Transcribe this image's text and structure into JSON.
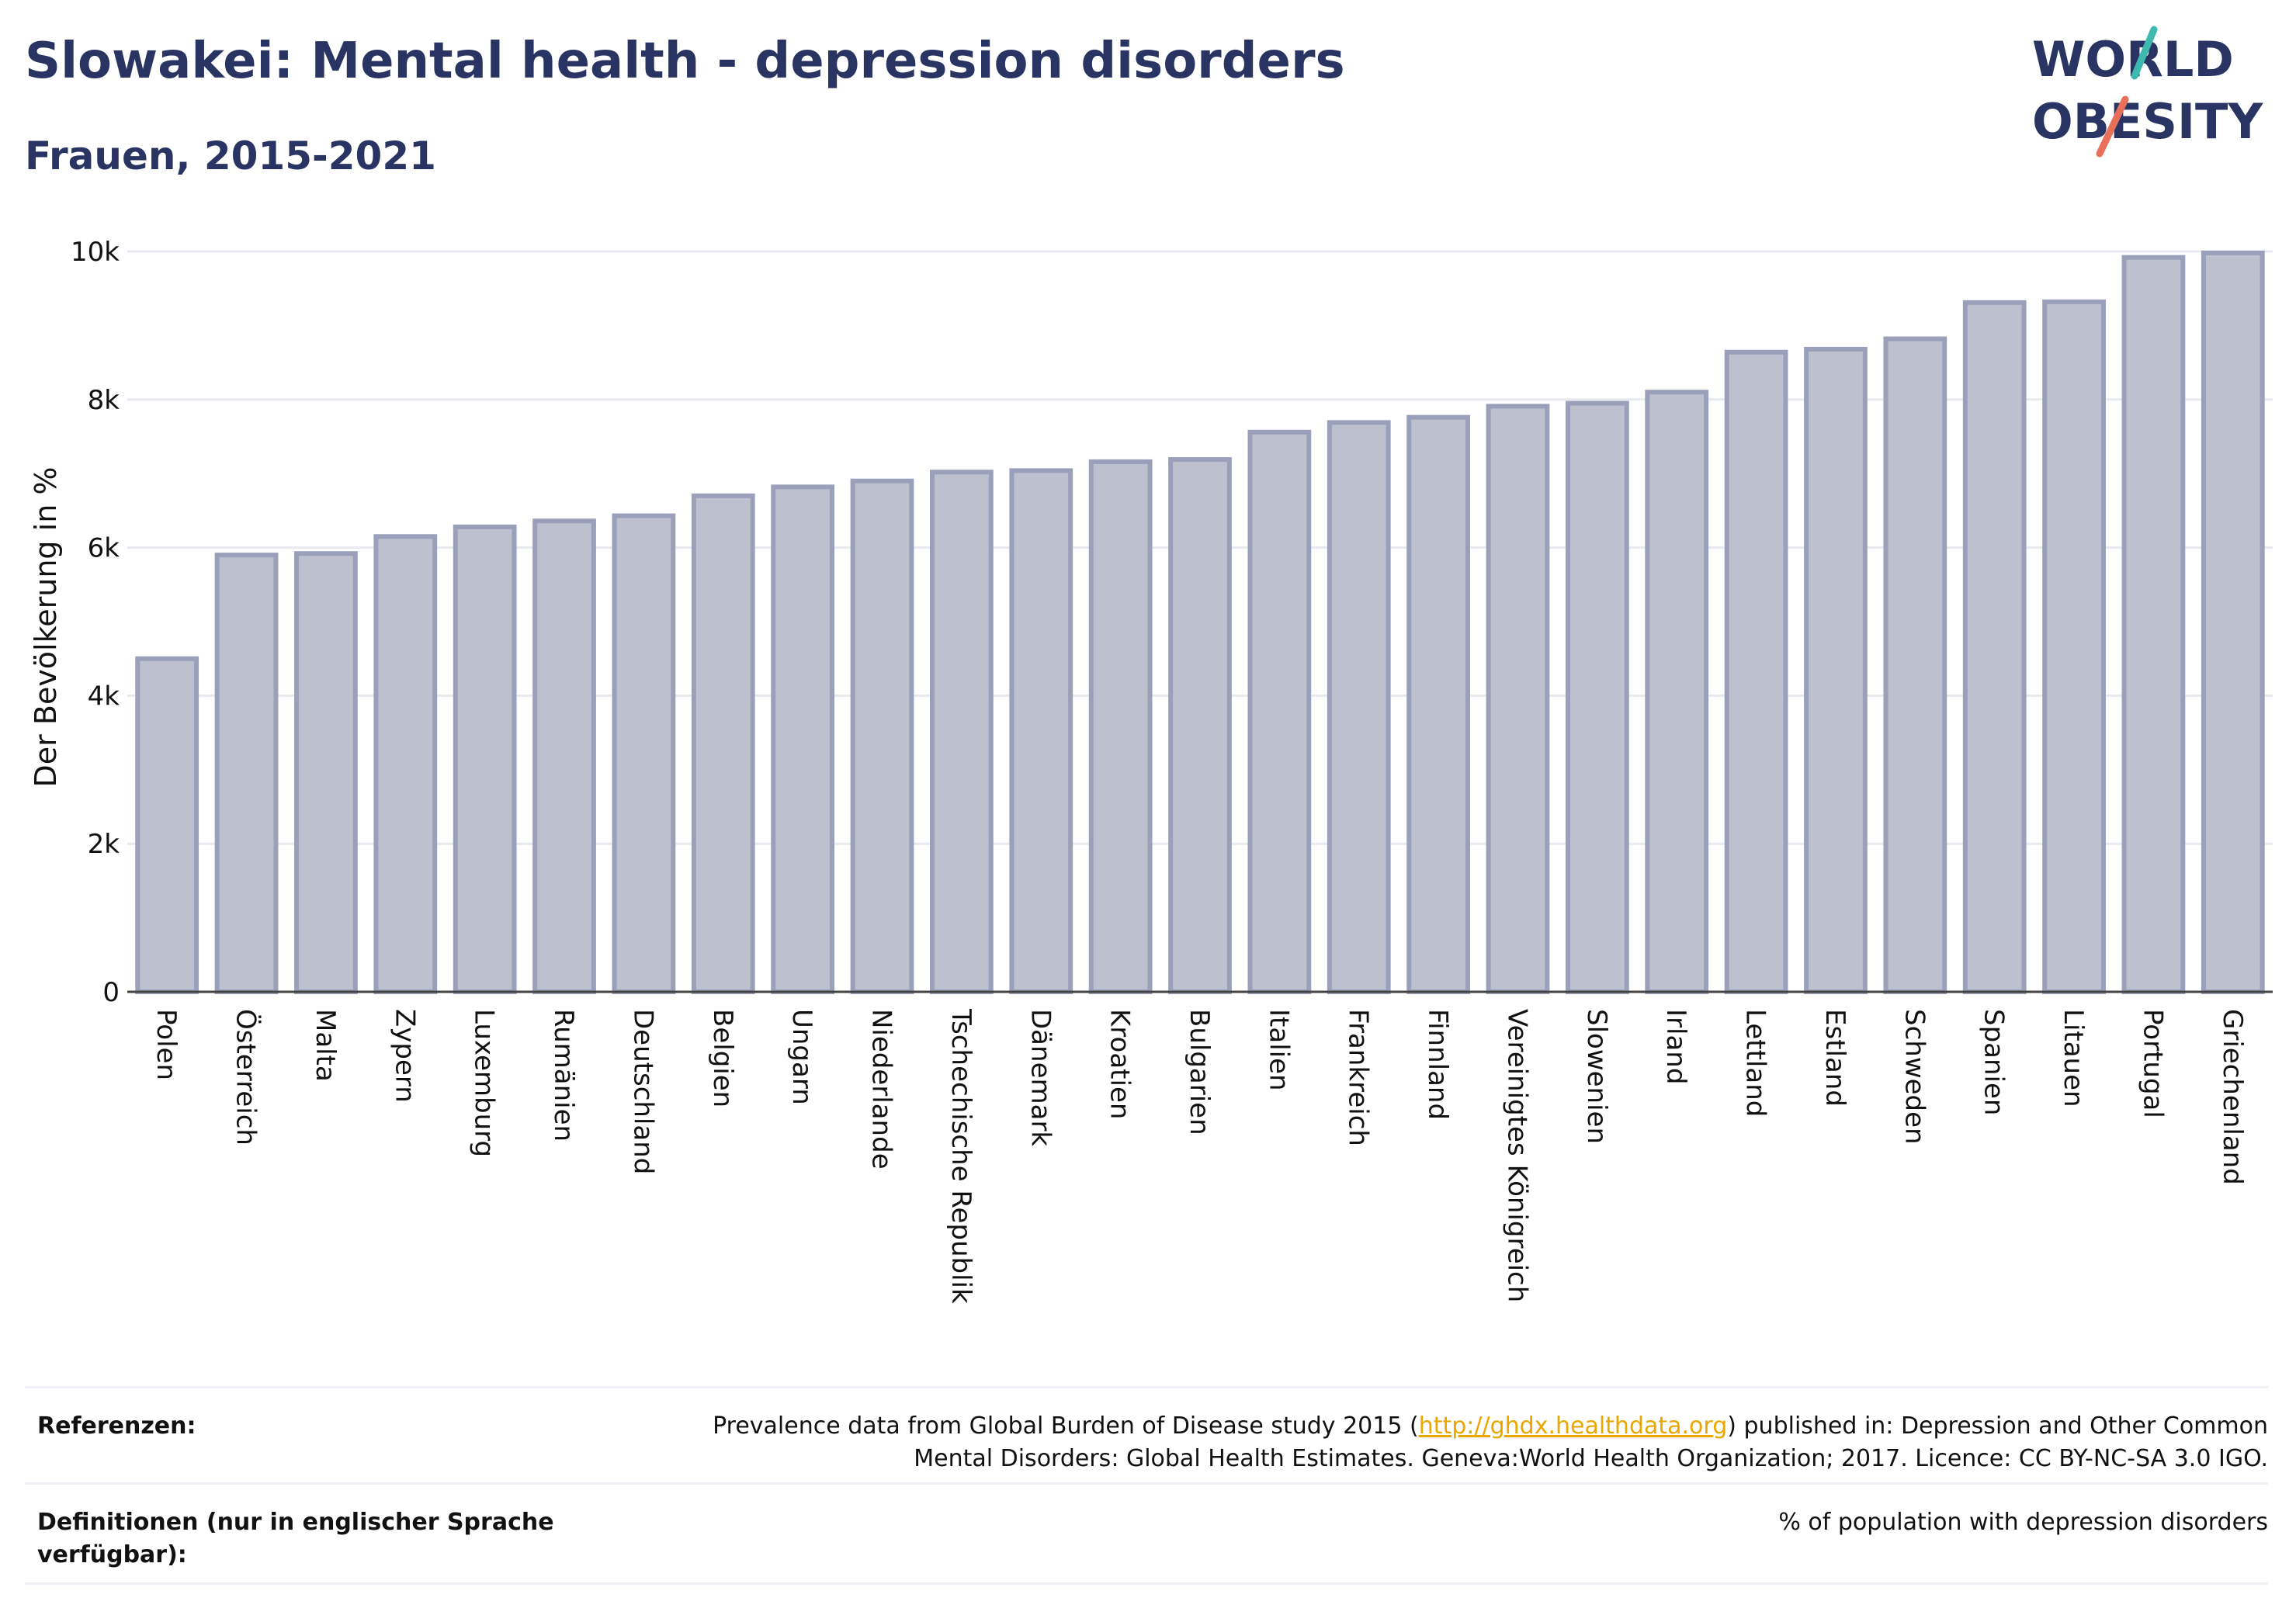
{
  "header": {
    "title": "Slowakei: Mental health - depression disorders",
    "subtitle": "Frauen, 2015-2021"
  },
  "logo": {
    "line1": "WORLD",
    "line2": "OBESITY"
  },
  "colors": {
    "bar_fill": "#bcc0cf",
    "bar_stroke": "#9aa0ba",
    "title": "#2a3462",
    "logo_teal": "#3fb8b0",
    "logo_coral": "#e8705a",
    "link": "#e8a800"
  },
  "chart_data": {
    "type": "bar",
    "ylabel": "Der Bevölkerung in %",
    "ylim": [
      0,
      10000
    ],
    "yticks": [
      {
        "value": 0,
        "label": "0"
      },
      {
        "value": 2000,
        "label": "2k"
      },
      {
        "value": 4000,
        "label": "4k"
      },
      {
        "value": 6000,
        "label": "6k"
      },
      {
        "value": 8000,
        "label": "8k"
      },
      {
        "value": 10000,
        "label": "10k"
      }
    ],
    "grid": true,
    "categories": [
      "Polen",
      "Österreich",
      "Malta",
      "Zypern",
      "Luxemburg",
      "Rumänien",
      "Deutschland",
      "Belgien",
      "Ungarn",
      "Niederlande",
      "Tschechische Republik",
      "Dänemark",
      "Kroatien",
      "Bulgarien",
      "Italien",
      "Frankreich",
      "Finnland",
      "Vereinigtes Königreich",
      "Slowenien",
      "Irland",
      "Lettland",
      "Estland",
      "Schweden",
      "Spanien",
      "Litauen",
      "Portugal",
      "Griechenland"
    ],
    "values": [
      4500,
      5900,
      5920,
      6150,
      6280,
      6360,
      6430,
      6700,
      6820,
      6900,
      7020,
      7040,
      7160,
      7190,
      7560,
      7690,
      7760,
      7910,
      7950,
      8100,
      8640,
      8680,
      8820,
      9310,
      9320,
      9920,
      9980
    ]
  },
  "footer": {
    "references_label": "Referenzen:",
    "references_prefix": "Prevalence data from Global Burden of Disease study 2015 (",
    "references_link": "http://ghdx.healthdata.org",
    "references_suffix": ") published in: Depression and Other Common Mental Disorders: Global Health Estimates. Geneva:World Health Organization; 2017. Licence: CC BY-NC-SA 3.0 IGO.",
    "definitions_label": "Definitionen (nur in englischer Sprache verfügbar):",
    "definitions_text": "% of population with depression disorders"
  }
}
